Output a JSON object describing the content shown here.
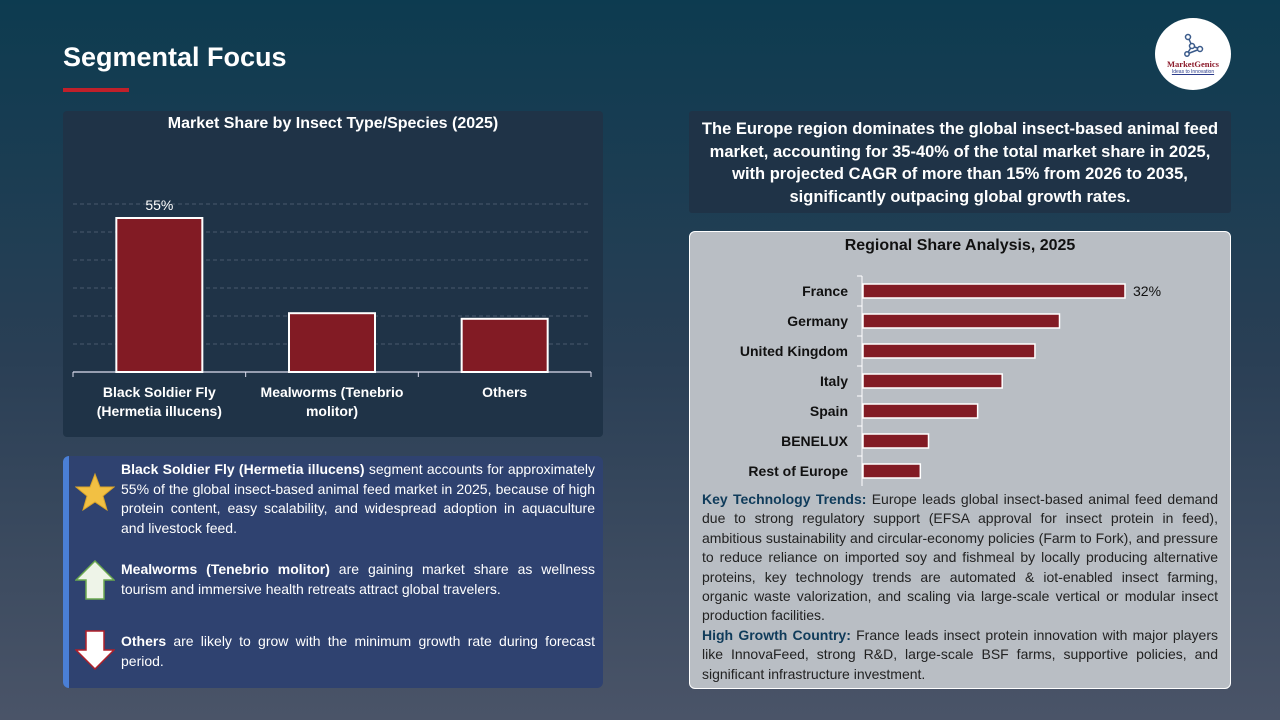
{
  "page": {
    "title": "Segmental Focus"
  },
  "logo": {
    "name": "MarketGenics",
    "tagline": "Ideas to Innovation"
  },
  "chart_data": [
    {
      "type": "bar",
      "title": "Market Share by Insect Type/Species (2025)",
      "categories": [
        "Black Soldier Fly (Hermetia illucens)",
        "Mealworms (Tenebrio molitor)",
        "Others"
      ],
      "category_lines": [
        [
          "Black Soldier Fly",
          "(Hermetia illucens)"
        ],
        [
          "Mealworms (Tenebrio",
          "molitor)"
        ],
        [
          "Others"
        ]
      ],
      "values": [
        55,
        21,
        19
      ],
      "data_labels": [
        "55%",
        "",
        ""
      ],
      "ylim": [
        0,
        60
      ],
      "grid": true,
      "unit": "%",
      "color": "#821b24"
    },
    {
      "type": "bar",
      "orientation": "horizontal",
      "title": "Regional Share Analysis, 2025",
      "categories": [
        "France",
        "Germany",
        "United Kingdom",
        "Italy",
        "Spain",
        "BENELUX",
        "Rest of Europe"
      ],
      "values": [
        32,
        24,
        21,
        17,
        14,
        8,
        7
      ],
      "data_labels": [
        "32%",
        "",
        "",
        "",
        "",
        "",
        ""
      ],
      "unit": "%",
      "color": "#821b24"
    }
  ],
  "segments": [
    {
      "icon": "star-icon",
      "bold": "Black Soldier Fly (Hermetia illucens)",
      "text": " segment accounts for approximately 55% of the global insect-based animal feed market in 2025, because of high protein content, easy scalability, and widespread adoption in aquaculture and livestock feed."
    },
    {
      "icon": "arrow-up-icon",
      "bold": "Mealworms (Tenebrio molitor)",
      "text": " are gaining market share as wellness tourism and immersive health retreats attract global travelers."
    },
    {
      "icon": "arrow-down-icon",
      "bold": "Others",
      "text": " are likely to grow with the minimum growth rate during forecast period."
    }
  ],
  "highlight": "The Europe region dominates the global insect-based animal feed market, accounting for 35-40% of the total market share in 2025, with projected CAGR of more than 15% from 2026 to 2035, significantly outpacing global growth rates.",
  "notes": {
    "trends_label": "Key Technology Trends:",
    "trends_text": " Europe leads global insect-based animal feed demand due to strong regulatory support (EFSA approval for insect protein in feed), ambitious sustainability and circular-economy policies (Farm to Fork), and pressure to reduce reliance on imported soy and fishmeal by locally producing alternative proteins, key technology trends are automated & iot-enabled insect farming, organic waste valorization, and scaling via large-scale vertical or modular insect production facilities.",
    "growth_label": "High Growth Country:",
    "growth_text": " France leads insect protein innovation with major players like InnovaFeed, strong R&D, large-scale BSF farms, supportive policies, and significant infrastructure investment."
  }
}
